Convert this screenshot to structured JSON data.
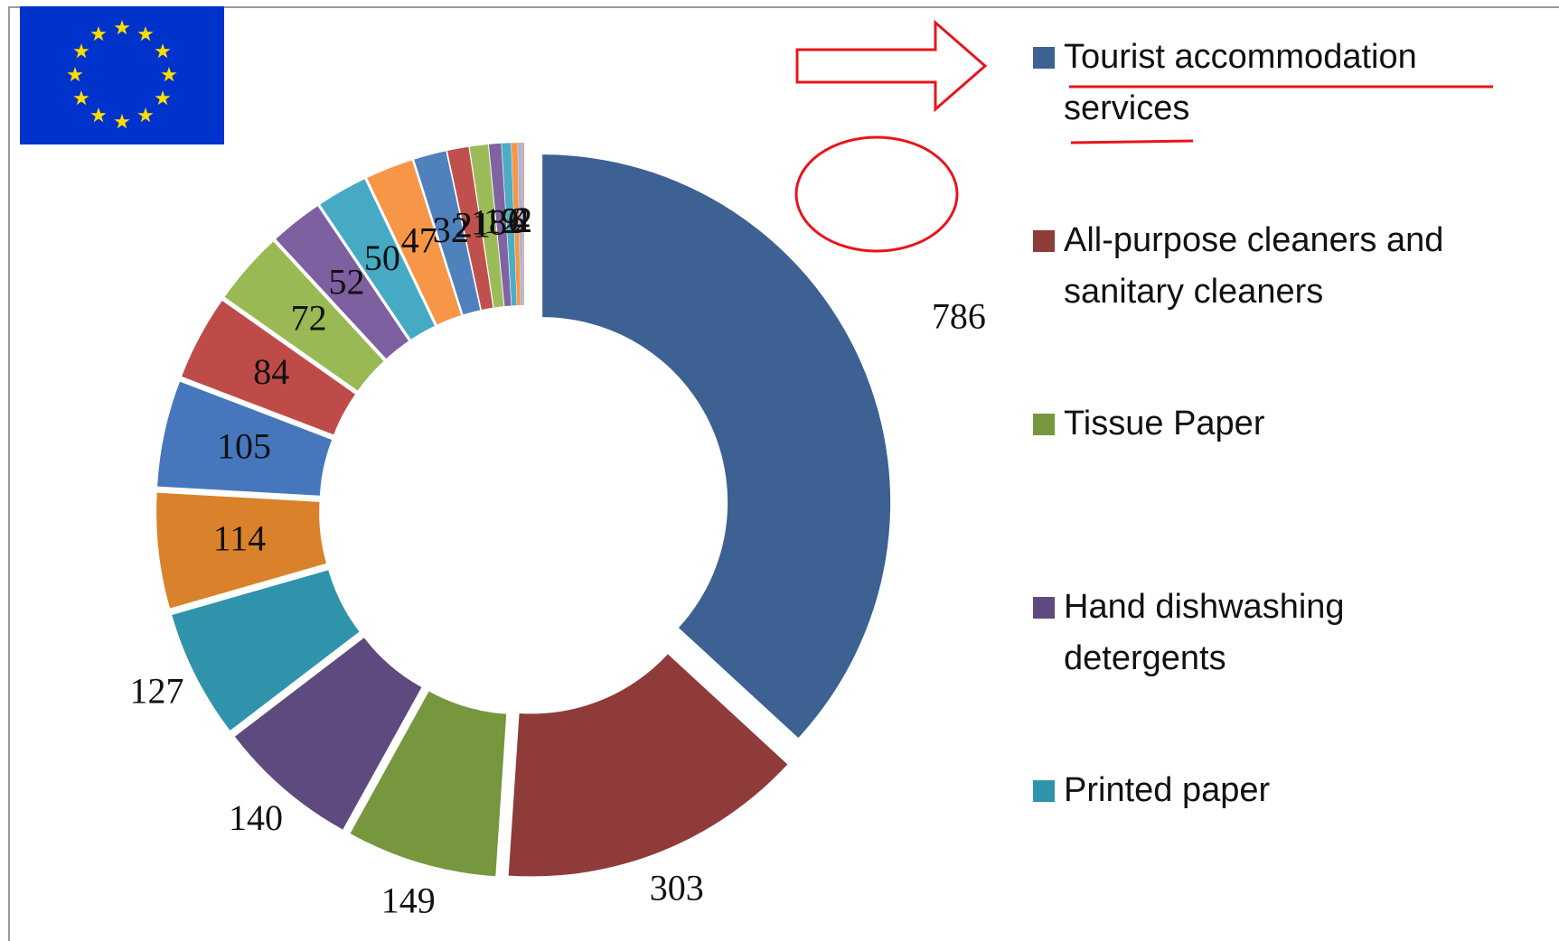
{
  "chart_data": {
    "type": "donut",
    "categories": [
      "Tourist accommodation services",
      "All-purpose cleaners and sanitary cleaners",
      "Tissue Paper",
      "Hand dishwashing detergents",
      "Printed paper",
      null,
      null,
      null,
      null,
      null,
      null,
      null,
      null,
      null,
      null,
      null,
      null,
      null,
      null,
      null
    ],
    "values": [
      786,
      303,
      149,
      140,
      127,
      114,
      105,
      84,
      72,
      52,
      50,
      47,
      32,
      21,
      18,
      12,
      9,
      6,
      4,
      2
    ],
    "colors": [
      "#3c6192",
      "#8e3b3a",
      "#76973d",
      "#5e4a7e",
      "#2f93ab",
      "#d9822b",
      "#4677bd",
      "#be4b48",
      "#98b954",
      "#7d60a0",
      "#46aac5",
      "#f79646",
      "#4f81bd",
      "#c0504d",
      "#9bbb59",
      "#8064a2",
      "#4bacc6",
      "#f79646",
      "#a5b6d8",
      "#d9a5a4"
    ]
  }
}
